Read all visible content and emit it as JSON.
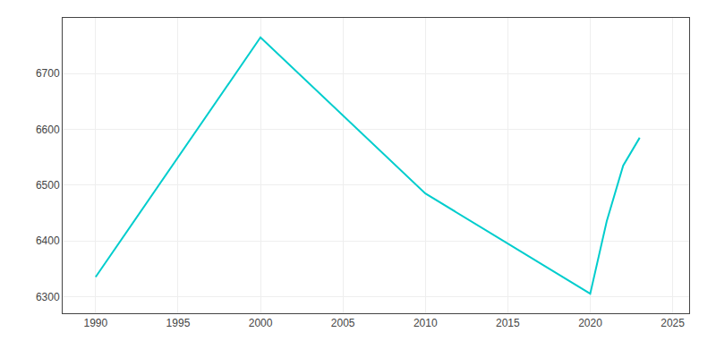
{
  "chart_data": {
    "type": "line",
    "x": [
      1990,
      2000,
      2010,
      2020,
      2021,
      2022,
      2023
    ],
    "values": [
      6335,
      6765,
      6485,
      6305,
      6435,
      6535,
      6585
    ],
    "color": "#00CDCD",
    "xlim": [
      1988,
      2026
    ],
    "ylim": [
      6270,
      6800
    ],
    "xticks": [
      1990,
      1995,
      2000,
      2005,
      2010,
      2015,
      2020,
      2025
    ],
    "yticks": [
      6300,
      6400,
      6500,
      6600,
      6700
    ],
    "grid": true
  }
}
